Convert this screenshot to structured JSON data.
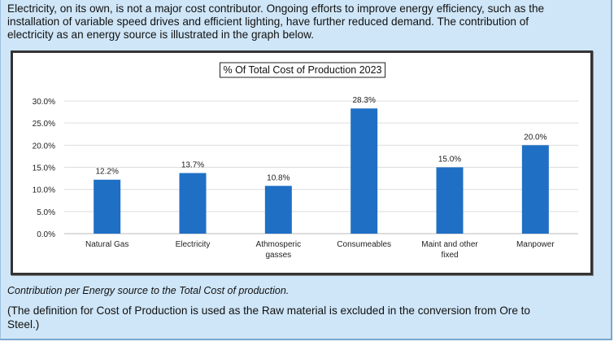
{
  "intro_lines": [
    "Electricity, on its own, is not a major cost contributor. Ongoing efforts to improve energy efficiency, such as the",
    "installation of variable speed drives and efficient lighting, have further reduced demand. The contribution of",
    "electricity as an energy source is illustrated in the graph below."
  ],
  "caption": "Contribution per Energy source to the Total Cost of production.",
  "note_lines": [
    "(The definition for Cost of Production is used as the Raw material is excluded in the conversion from Ore to",
    "Steel.)"
  ],
  "colors": {
    "bar": "#1f6fc5",
    "panel": "#cfe6f8"
  },
  "chart_data": {
    "type": "bar",
    "title": "% Of Total Cost of Production 2023",
    "categories": [
      [
        "Natural Gas"
      ],
      [
        "Electricity"
      ],
      [
        "Athmosperic",
        "gasses"
      ],
      [
        "Consumeables"
      ],
      [
        "Maint and other",
        "fixed"
      ],
      [
        "Manpower"
      ]
    ],
    "values": [
      12.2,
      13.7,
      10.8,
      28.3,
      15.0,
      20.0
    ],
    "data_labels": [
      "12.2%",
      "13.7%",
      "10.8%",
      "28.3%",
      "15.0%",
      "20.0%"
    ],
    "yticks": [
      "0.0%",
      "5.0%",
      "10.0%",
      "15.0%",
      "20.0%",
      "25.0%",
      "30.0%"
    ],
    "ylim": [
      0,
      30
    ],
    "grid": true,
    "xlabel": "",
    "ylabel": ""
  }
}
